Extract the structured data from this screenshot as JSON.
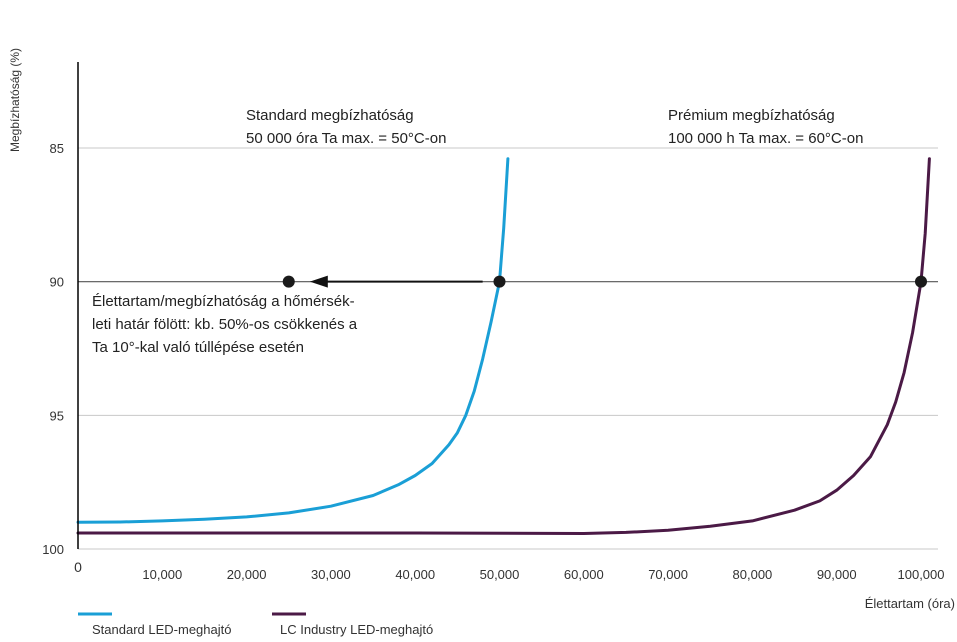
{
  "chart_data": {
    "type": "line",
    "ylabel": "Megbízhatóság (%)",
    "xlabel": "Élettartam (óra)",
    "xlim": [
      0,
      105000
    ],
    "ylim": [
      100,
      81
    ],
    "y_axis_inverted": true,
    "grid": "horizontal",
    "x_ticks": [
      0,
      10000,
      20000,
      30000,
      40000,
      50000,
      60000,
      70000,
      80000,
      90000,
      100000
    ],
    "x_tick_labels": [
      "0",
      "10,000",
      "20,000",
      "30,000",
      "40,000",
      "50,000",
      "60,000",
      "70,000",
      "80,000",
      "90,000",
      "100,000"
    ],
    "y_ticks": [
      85,
      90,
      95,
      100
    ],
    "y_tick_labels": [
      "85",
      "90",
      "95",
      "100"
    ],
    "legend_position": "bottom-left",
    "series": [
      {
        "name": "Standard LED-meghajtó",
        "color": "#1a9fd6",
        "x": [
          0,
          5000,
          10000,
          15000,
          20000,
          25000,
          30000,
          35000,
          38000,
          40000,
          42000,
          44000,
          45000,
          46000,
          47000,
          48000,
          49000,
          50000,
          50500,
          51000
        ],
        "y": [
          99.0,
          98.99,
          98.95,
          98.89,
          98.8,
          98.65,
          98.4,
          98.0,
          97.6,
          97.25,
          96.8,
          96.1,
          95.65,
          95.0,
          94.1,
          92.9,
          91.5,
          90.0,
          88.0,
          85.4
        ]
      },
      {
        "name": "LC Industry LED-meghajtó",
        "color": "#4b1a46",
        "x": [
          0,
          20000,
          40000,
          60000,
          65000,
          70000,
          75000,
          80000,
          85000,
          88000,
          90000,
          92000,
          94000,
          96000,
          97000,
          98000,
          99000,
          100000,
          100500,
          101000
        ],
        "y": [
          99.4,
          99.4,
          99.4,
          99.42,
          99.38,
          99.3,
          99.15,
          98.95,
          98.55,
          98.2,
          97.8,
          97.25,
          96.55,
          95.35,
          94.5,
          93.4,
          91.9,
          90.0,
          88.2,
          85.4
        ]
      }
    ],
    "points": [
      {
        "x": 25000,
        "y": 90
      },
      {
        "x": 50000,
        "y": 90
      },
      {
        "x": 100000,
        "y": 90
      }
    ],
    "arrow": {
      "from": {
        "x": 48000,
        "y": 90
      },
      "to": {
        "x": 27500,
        "y": 90
      }
    },
    "annotations": {
      "standard_line1": "Standard megbízhatóság",
      "standard_line2": "50 000 óra  Ta max. = 50°C-on",
      "premium_line1": "Prémium megbízhatóság",
      "premium_line2": "100 000 h  Ta max. = 60°C-on",
      "note_line1": "Élettartam/megbízhatóság a hőmérsék-",
      "note_line2": "leti határ fölött: kb. 50%-os csökkenés a",
      "note_line3": "Ta 10°-kal való túllépése esetén"
    }
  }
}
